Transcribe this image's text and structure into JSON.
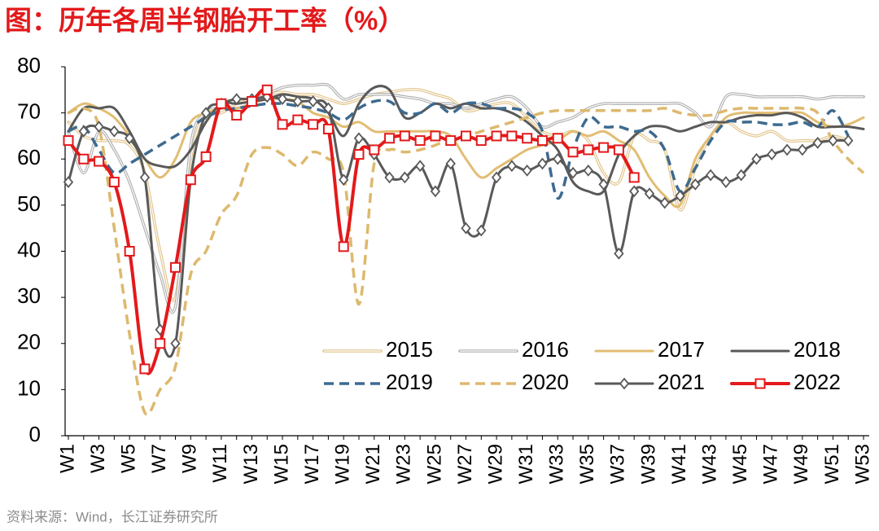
{
  "chart_data": {
    "type": "line",
    "title": "图：历年各周半钢胎开工率（%）",
    "source": "资料来源：Wind，长江证券研究所",
    "categories": [
      "W1",
      null,
      "W3",
      null,
      "W5",
      null,
      "W7",
      null,
      "W9",
      null,
      "W11",
      null,
      "W13",
      null,
      "W15",
      null,
      "W17",
      null,
      "W19",
      null,
      "W21",
      null,
      "W23",
      null,
      "W25",
      null,
      "W27",
      null,
      "W29",
      null,
      "W31",
      null,
      "W33",
      null,
      "W35",
      null,
      "W37",
      null,
      "W39",
      null,
      "W41",
      null,
      "W43",
      null,
      "W45",
      null,
      "W47",
      null,
      "W49",
      null,
      "W51",
      null,
      "W53"
    ],
    "ylim": [
      0,
      80
    ],
    "yticks": [
      0,
      10,
      20,
      30,
      40,
      50,
      60,
      70,
      80
    ],
    "grid": false,
    "legend": "lower right",
    "series": [
      {
        "name": "2015",
        "color": "#e2c48a",
        "style": "double",
        "values": [
          68,
          65,
          64,
          64,
          63,
          57,
          40,
          30,
          60,
          70,
          70,
          72,
          73,
          74,
          74.5,
          74,
          74,
          73,
          72,
          73,
          74,
          74.5,
          75,
          75,
          74,
          73,
          70.5,
          71,
          72,
          72,
          69,
          66,
          65,
          66,
          64,
          57,
          55,
          65,
          64,
          62,
          49,
          58,
          65,
          68,
          66,
          65,
          66,
          64,
          64,
          64,
          65,
          64,
          null
        ]
      },
      {
        "name": "2016",
        "color": "#b0b0b0",
        "style": "double",
        "values": [
          66,
          57,
          66,
          62,
          55,
          45,
          35,
          28,
          63,
          70,
          71,
          71,
          72,
          74,
          75.5,
          76,
          76,
          76,
          73,
          74,
          74,
          74,
          73.5,
          73,
          72,
          72,
          71,
          72,
          73,
          73.5,
          71,
          67,
          68,
          69,
          71,
          72,
          72,
          72,
          72,
          72,
          72,
          70,
          67,
          73.5,
          74,
          73.5,
          73.5,
          73.5,
          73.5,
          73,
          73.5,
          73.5,
          73.5
        ]
      },
      {
        "name": "2017",
        "color": "#e2bd73",
        "style": "solid",
        "values": [
          70,
          72,
          71,
          69,
          65,
          60,
          56,
          60,
          68,
          70,
          71,
          71,
          72,
          73,
          73,
          72.5,
          70,
          69,
          67,
          68,
          66,
          66,
          66,
          66,
          66,
          65,
          60,
          56,
          58,
          60,
          62,
          63,
          64,
          66,
          65,
          66,
          64,
          62,
          56,
          52,
          50,
          60,
          65,
          69,
          70,
          70,
          70,
          70,
          70,
          68,
          67,
          67.5,
          69
        ]
      },
      {
        "name": "2018",
        "color": "#595959",
        "style": "solid",
        "values": [
          66,
          71,
          71,
          71,
          66,
          60,
          58.5,
          58.5,
          62,
          68,
          72,
          72,
          72.5,
          73,
          74,
          73.5,
          73,
          70,
          65,
          72,
          75.5,
          75,
          69,
          70,
          72,
          71,
          72,
          71,
          71,
          70,
          68,
          65,
          62,
          55,
          53,
          53,
          61,
          65,
          67,
          67,
          66,
          67,
          68,
          68,
          69,
          69.5,
          69.5,
          70,
          69,
          67,
          67,
          67,
          66.5
        ]
      },
      {
        "name": "2019",
        "color": "#3e6a8f",
        "style": "dashed",
        "values": [
          66,
          67,
          62,
          57,
          59,
          61,
          63,
          65,
          67,
          69,
          70.5,
          71,
          71.5,
          72,
          72,
          71.5,
          71,
          70,
          68.5,
          71,
          72.5,
          72.5,
          70,
          70,
          72,
          70,
          72,
          72,
          71,
          71,
          70,
          66,
          51.5,
          62,
          69,
          67,
          67,
          66,
          66,
          62,
          53,
          58,
          64,
          68,
          68,
          68,
          67.5,
          67.5,
          68,
          67,
          70.5,
          65,
          null
        ]
      },
      {
        "name": "2020",
        "color": "#ddb96e",
        "style": "dashed",
        "values": [
          70,
          71,
          67,
          45,
          22,
          5,
          10,
          15,
          35,
          40,
          48,
          52,
          61,
          62.5,
          61,
          58.5,
          61.5,
          60,
          57,
          28.5,
          59,
          62,
          61.5,
          62,
          63,
          64.5,
          65,
          66,
          67,
          68,
          69,
          70,
          70.5,
          70.5,
          70.5,
          70.5,
          70.5,
          70.5,
          70.5,
          71,
          70,
          69.5,
          69.5,
          70.5,
          71,
          71,
          71,
          71,
          71,
          70,
          64,
          60,
          57
        ]
      },
      {
        "name": "2021",
        "color": "#595959",
        "style": "solid",
        "marker": "diamond",
        "values": [
          55,
          66,
          67,
          66,
          64.5,
          56,
          23,
          20,
          55.5,
          70,
          72,
          73,
          73,
          73.5,
          73,
          72.5,
          72.5,
          71,
          55.5,
          64.5,
          61,
          56,
          56,
          58.5,
          53,
          59,
          45,
          44.5,
          56,
          58.5,
          57.5,
          59,
          60,
          57,
          57.5,
          54.5,
          39.5,
          53,
          52.5,
          50.5,
          52,
          54.5,
          56.5,
          55,
          56.5,
          60,
          61,
          62,
          62,
          63.5,
          64,
          64,
          null
        ]
      },
      {
        "name": "2022",
        "color": "#e3191b",
        "style": "solid",
        "marker": "square",
        "values": [
          64,
          60,
          59.5,
          55,
          40,
          14.5,
          20,
          36.5,
          55.5,
          60.5,
          72,
          69.5,
          72.5,
          75,
          67.5,
          68.5,
          67.5,
          66.5,
          41,
          61,
          62,
          64.5,
          65,
          64,
          65,
          64,
          65,
          64,
          65,
          65,
          64.5,
          64,
          64.5,
          61.5,
          62,
          62.5,
          62,
          56,
          null,
          null,
          null,
          null,
          null,
          null,
          null,
          null,
          null,
          null,
          null,
          null,
          null,
          null,
          null
        ]
      }
    ]
  }
}
